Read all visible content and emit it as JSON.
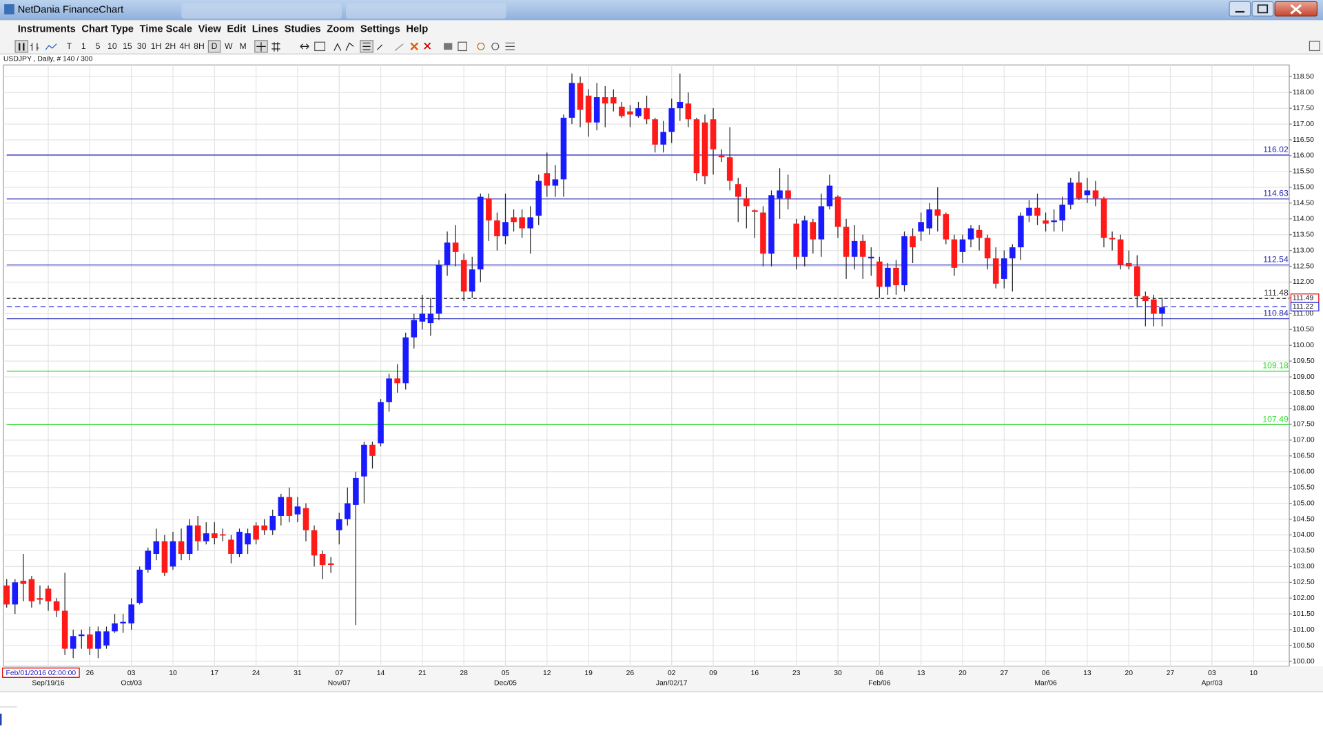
{
  "window": {
    "title": "NetDania FinanceChart"
  },
  "menu": [
    "Instruments",
    "Chart Type",
    "Time Scale",
    "View",
    "Edit",
    "Lines",
    "Studies",
    "Zoom",
    "Settings",
    "Help"
  ],
  "toolbar": [
    "T",
    "1",
    "5",
    "10",
    "15",
    "30",
    "1H",
    "2H",
    "4H",
    "8H",
    "D",
    "W",
    "M"
  ],
  "chart_data": {
    "type": "candlestick",
    "title": "USDJPY , Daily, # 140 / 300",
    "cursor_label": "Feb/01/2016 02:00:00",
    "up_color": "#1a1aff",
    "down_color": "#ff1a1a",
    "grid": true,
    "xlim": [
      -0.4,
      154.3
    ],
    "ylim": [
      99.84,
      118.87
    ],
    "yticks": [
      {
        "value": 100,
        "label": "100.00"
      },
      {
        "value": 100.5,
        "label": "100.50"
      },
      {
        "value": 101,
        "label": "101.00"
      },
      {
        "value": 101.5,
        "label": "101.50"
      },
      {
        "value": 102,
        "label": "102.00"
      },
      {
        "value": 102.5,
        "label": "102.50"
      },
      {
        "value": 103,
        "label": "103.00"
      },
      {
        "value": 103.5,
        "label": "103.50"
      },
      {
        "value": 104,
        "label": "104.00"
      },
      {
        "value": 104.5,
        "label": "104.50"
      },
      {
        "value": 105,
        "label": "105.00"
      },
      {
        "value": 105.5,
        "label": "105.50"
      },
      {
        "value": 106,
        "label": "106.00"
      },
      {
        "value": 106.5,
        "label": "106.50"
      },
      {
        "value": 107,
        "label": "107.00"
      },
      {
        "value": 107.5,
        "label": "107.50"
      },
      {
        "value": 108,
        "label": "108.00"
      },
      {
        "value": 108.5,
        "label": "108.50"
      },
      {
        "value": 109,
        "label": "109.00"
      },
      {
        "value": 109.5,
        "label": "109.50"
      },
      {
        "value": 110,
        "label": "110.00"
      },
      {
        "value": 110.5,
        "label": "110.50"
      },
      {
        "value": 111,
        "label": "111.00"
      },
      {
        "value": 111.5,
        "label": "111.50"
      },
      {
        "value": 112,
        "label": "112.00"
      },
      {
        "value": 112.5,
        "label": "112.50"
      },
      {
        "value": 113,
        "label": "113.00"
      },
      {
        "value": 113.5,
        "label": "113.50"
      },
      {
        "value": 114,
        "label": "114.00"
      },
      {
        "value": 114.5,
        "label": "114.50"
      },
      {
        "value": 115,
        "label": "115.00"
      },
      {
        "value": 115.5,
        "label": "115.50"
      },
      {
        "value": 116,
        "label": "116.00"
      },
      {
        "value": 116.5,
        "label": "116.50"
      },
      {
        "value": 117,
        "label": "117.00"
      },
      {
        "value": 117.5,
        "label": "117.50"
      },
      {
        "value": 118,
        "label": "118.00"
      },
      {
        "value": 118.5,
        "label": "118.50"
      }
    ],
    "xticks": [
      {
        "value": 10,
        "label": "26"
      },
      {
        "value": 15,
        "label": "03"
      },
      {
        "value": 20,
        "label": "10"
      },
      {
        "value": 25,
        "label": "17"
      },
      {
        "value": 30,
        "label": "24"
      },
      {
        "value": 35,
        "label": "31"
      },
      {
        "value": 40,
        "label": "07"
      },
      {
        "value": 45,
        "label": "14"
      },
      {
        "value": 50,
        "label": "21"
      },
      {
        "value": 55,
        "label": "28"
      },
      {
        "value": 60,
        "label": "05"
      },
      {
        "value": 65,
        "label": "12"
      },
      {
        "value": 70,
        "label": "19"
      },
      {
        "value": 75,
        "label": "26"
      },
      {
        "value": 80,
        "label": "02"
      },
      {
        "value": 85,
        "label": "09"
      },
      {
        "value": 90,
        "label": "16"
      },
      {
        "value": 95,
        "label": "23"
      },
      {
        "value": 100,
        "label": "30"
      },
      {
        "value": 105,
        "label": "06"
      },
      {
        "value": 110,
        "label": "13"
      },
      {
        "value": 115,
        "label": "20"
      },
      {
        "value": 120,
        "label": "27"
      },
      {
        "value": 125,
        "label": "06"
      },
      {
        "value": 130,
        "label": "13"
      },
      {
        "value": 135,
        "label": "20"
      },
      {
        "value": 140,
        "label": "27"
      },
      {
        "value": 145,
        "label": "03"
      },
      {
        "value": 150,
        "label": "10"
      }
    ],
    "xticks_secondary": [
      {
        "value": 5,
        "label": "Sep/19/16"
      },
      {
        "value": 15,
        "label": "Oct/03"
      },
      {
        "value": 40,
        "label": "Nov/07"
      },
      {
        "value": 60,
        "label": "Dec/05"
      },
      {
        "value": 80,
        "label": "Jan/02/17"
      },
      {
        "value": 105,
        "label": "Feb/06"
      },
      {
        "value": 125,
        "label": "Mar/06"
      },
      {
        "value": 145,
        "label": "Apr/03"
      }
    ],
    "levels": [
      {
        "value": 116.02,
        "color": "#2a2ab8"
      },
      {
        "value": 114.63,
        "color": "#2a2ab8"
      },
      {
        "value": 112.54,
        "color": "#2a2ab8"
      },
      {
        "value": 111.48,
        "color": "#333333",
        "dashed": true
      },
      {
        "value": 110.84,
        "color": "#2a2ab8"
      },
      {
        "value": 109.18,
        "color": "#33dd33"
      },
      {
        "value": 107.49,
        "color": "#33dd33"
      }
    ],
    "price_tags": [
      {
        "value": 111.49,
        "color": "#e00000"
      },
      {
        "value": 111.22,
        "color": "#2020e0",
        "dashed": true
      }
    ],
    "open": [
      102.4,
      101.8,
      102.55,
      102.6,
      102.0,
      102.3,
      101.9,
      101.6,
      100.4,
      100.8,
      100.85,
      100.4,
      100.5,
      100.95,
      101.2,
      101.2,
      101.85,
      102.9,
      103.4,
      103.8,
      103.0,
      103.8,
      103.4,
      104.3,
      103.8,
      104.05,
      104.02,
      103.85,
      103.4,
      103.7,
      104.3,
      104.3,
      104.15,
      104.6,
      105.2,
      104.65,
      104.85,
      104.15,
      103.4,
      103.1,
      104.15,
      104.5,
      104.95,
      105.85,
      106.85,
      106.9,
      108.2,
      108.95,
      108.8,
      110.25,
      110.75,
      110.7,
      111.0,
      112.55,
      113.25,
      112.7,
      111.7,
      112.4,
      114.65,
      113.95,
      113.45,
      114.05,
      114.05,
      113.7,
      114.1,
      115.45,
      115.05,
      115.25,
      117.2,
      118.3,
      117.9,
      117.05,
      117.85,
      117.85,
      117.55,
      117.4,
      117.25,
      117.5,
      117.15,
      116.35,
      116.75,
      117.5,
      117.65,
      117.15,
      117.05,
      117.15,
      116.0,
      115.95,
      115.1,
      114.65,
      114.27,
      114.2,
      112.9,
      114.65,
      114.9,
      113.85,
      112.8,
      113.9,
      113.35,
      114.4,
      114.7,
      113.75,
      112.8,
      113.3,
      112.75,
      112.65,
      111.85,
      112.45,
      111.9,
      113.45,
      113.6,
      113.7,
      114.3,
      114.15,
      113.35,
      112.95,
      113.35,
      113.65,
      113.4,
      112.75,
      112.1,
      112.75,
      113.1,
      114.1,
      114.35,
      113.95,
      113.9,
      113.95,
      114.45,
      115.15,
      114.75,
      114.9,
      114.65,
      113.4,
      113.35,
      112.6,
      112.5,
      111.55,
      111.45,
      111.0
    ],
    "high": [
      102.6,
      102.6,
      103.4,
      102.7,
      102.4,
      102.4,
      102.0,
      102.8,
      101.0,
      101.0,
      101.1,
      101.1,
      101.1,
      101.5,
      101.5,
      102.0,
      103.0,
      103.6,
      104.2,
      104.0,
      104.1,
      104.2,
      104.5,
      104.6,
      104.4,
      104.4,
      104.2,
      104.0,
      104.2,
      104.2,
      104.4,
      104.5,
      104.8,
      105.3,
      105.5,
      105.2,
      105.0,
      104.3,
      103.5,
      103.3,
      104.7,
      105.5,
      106.0,
      106.95,
      106.95,
      108.3,
      109.1,
      109.4,
      110.4,
      111.0,
      111.6,
      111.5,
      112.7,
      113.6,
      113.8,
      112.9,
      112.8,
      114.8,
      114.8,
      114.2,
      114.8,
      114.3,
      114.3,
      114.4,
      115.4,
      116.1,
      115.7,
      117.3,
      118.6,
      118.5,
      118.1,
      118.3,
      118.2,
      118.1,
      117.7,
      117.6,
      117.7,
      117.9,
      117.2,
      117.1,
      117.8,
      118.6,
      118.0,
      117.2,
      117.3,
      117.5,
      116.2,
      116.9,
      115.3,
      115.0,
      114.3,
      114.4,
      114.9,
      115.6,
      115.4,
      114.0,
      114.1,
      114.0,
      114.8,
      115.4,
      114.75,
      114.0,
      113.8,
      113.5,
      113.1,
      112.8,
      112.6,
      112.7,
      113.6,
      113.7,
      114.2,
      114.5,
      115.0,
      114.2,
      113.5,
      113.5,
      113.8,
      113.8,
      113.5,
      113.1,
      113.0,
      113.2,
      114.2,
      114.6,
      114.8,
      114.2,
      114.3,
      114.7,
      115.3,
      115.5,
      115.3,
      115.2,
      114.7,
      113.6,
      113.5,
      113.0,
      112.85,
      111.7,
      111.6,
      111.5
    ],
    "low": [
      101.7,
      101.5,
      101.9,
      101.7,
      101.8,
      101.6,
      101.4,
      100.2,
      100.1,
      100.4,
      100.2,
      100.1,
      100.4,
      100.9,
      100.9,
      101.0,
      101.8,
      102.8,
      103.2,
      102.7,
      102.9,
      103.2,
      103.2,
      103.5,
      103.7,
      103.7,
      103.8,
      103.1,
      103.3,
      103.4,
      103.7,
      104.0,
      104.0,
      104.3,
      104.4,
      104.4,
      103.8,
      103.0,
      102.6,
      102.8,
      103.7,
      104.3,
      101.15,
      105.0,
      106.1,
      106.8,
      107.9,
      108.5,
      108.6,
      109.9,
      110.5,
      110.3,
      110.8,
      112.2,
      112.5,
      111.4,
      111.5,
      112.0,
      113.3,
      113.0,
      113.2,
      113.6,
      113.4,
      112.9,
      113.8,
      114.7,
      114.7,
      114.7,
      117.0,
      116.9,
      116.6,
      116.8,
      116.9,
      117.4,
      117.2,
      116.9,
      117.2,
      117.0,
      116.1,
      116.1,
      116.4,
      117.1,
      116.9,
      115.2,
      115.1,
      115.4,
      115.8,
      114.9,
      113.9,
      113.7,
      113.4,
      112.5,
      112.5,
      114.0,
      114.3,
      112.4,
      112.5,
      112.9,
      112.8,
      114.3,
      113.4,
      112.1,
      112.4,
      112.1,
      112.2,
      111.5,
      111.6,
      111.6,
      111.7,
      112.6,
      113.3,
      113.5,
      113.6,
      113.2,
      112.2,
      112.6,
      113.1,
      113.0,
      112.4,
      111.8,
      111.8,
      111.7,
      112.7,
      113.9,
      113.8,
      113.6,
      113.6,
      113.6,
      114.3,
      114.6,
      114.5,
      114.4,
      113.1,
      113.0,
      112.4,
      112.4,
      111.2,
      110.6,
      110.6,
      110.6
    ],
    "close": [
      101.8,
      102.5,
      102.45,
      101.9,
      101.95,
      101.9,
      101.6,
      100.4,
      100.8,
      100.85,
      100.4,
      100.95,
      100.95,
      101.2,
      101.25,
      101.8,
      102.9,
      103.5,
      103.8,
      102.8,
      103.8,
      103.4,
      104.3,
      103.8,
      104.05,
      103.9,
      103.98,
      103.4,
      104.1,
      104.05,
      103.85,
      104.15,
      104.6,
      105.2,
      104.6,
      104.9,
      104.15,
      103.35,
      103.05,
      103.05,
      104.5,
      105.0,
      105.8,
      106.85,
      106.5,
      108.2,
      108.95,
      108.8,
      110.25,
      110.8,
      111.0,
      111.0,
      112.55,
      113.25,
      112.95,
      111.7,
      112.4,
      114.7,
      113.95,
      113.45,
      113.9,
      113.9,
      113.7,
      114.05,
      115.2,
      115.05,
      115.25,
      117.2,
      118.3,
      117.45,
      117.05,
      117.85,
      117.65,
      117.65,
      117.25,
      117.3,
      117.5,
      117.15,
      116.35,
      116.75,
      117.5,
      117.7,
      117.15,
      115.45,
      115.35,
      116.2,
      115.95,
      115.2,
      114.7,
      114.4,
      114.22,
      112.9,
      114.75,
      114.9,
      114.65,
      112.8,
      113.95,
      113.35,
      114.4,
      115.05,
      113.75,
      112.8,
      113.3,
      112.8,
      112.8,
      111.85,
      112.45,
      111.9,
      113.45,
      113.1,
      113.9,
      114.3,
      114.1,
      113.35,
      112.45,
      113.35,
      113.7,
      113.4,
      112.75,
      111.95,
      112.75,
      113.1,
      114.1,
      114.35,
      114.1,
      113.85,
      113.95,
      114.45,
      115.15,
      114.65,
      114.9,
      114.65,
      113.4,
      113.35,
      112.55,
      112.5,
      111.55,
      111.4,
      111.0,
      111.2
    ]
  }
}
